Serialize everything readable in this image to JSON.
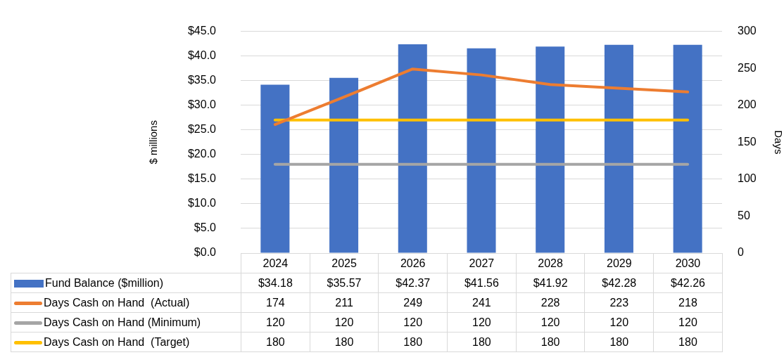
{
  "chart_data": {
    "type": "bar",
    "ylabel": "$ millions",
    "y2label": "Days",
    "categories": [
      "2024",
      "2025",
      "2026",
      "2027",
      "2028",
      "2029",
      "2030"
    ],
    "series": [
      {
        "name": "Fund Balance ($million)",
        "color": "#4472c4",
        "values": [
          34.18,
          35.57,
          42.37,
          41.56,
          41.92,
          42.28,
          42.26
        ],
        "value_labels": [
          "$34.18",
          "$35.57",
          "$42.37",
          "$41.56",
          "$41.92",
          "$42.28",
          "$42.26"
        ]
      },
      {
        "name": "Days Cash on Hand  (Actual)",
        "type": "line",
        "axis": "y2",
        "color": "#ed7d31",
        "values": [
          174,
          211,
          249,
          241,
          228,
          223,
          218
        ],
        "value_labels": [
          "174",
          "211",
          "249",
          "241",
          "228",
          "223",
          "218"
        ]
      },
      {
        "name": "Days Cash on Hand (Minimum)",
        "type": "line",
        "axis": "y2",
        "color": "#a5a5a5",
        "values": [
          120,
          120,
          120,
          120,
          120,
          120,
          120
        ],
        "value_labels": [
          "120",
          "120",
          "120",
          "120",
          "120",
          "120",
          "120"
        ]
      },
      {
        "name": "Days Cash on Hand  (Target)",
        "type": "line",
        "axis": "y2",
        "color": "#ffc000",
        "values": [
          180,
          180,
          180,
          180,
          180,
          180,
          180
        ],
        "value_labels": [
          "180",
          "180",
          "180",
          "180",
          "180",
          "180",
          "180"
        ]
      }
    ],
    "ylim": [
      0,
      45
    ],
    "yticks": [
      {
        "value": 0,
        "label": "$0.0"
      },
      {
        "value": 5,
        "label": "$5.0"
      },
      {
        "value": 10,
        "label": "$10.0"
      },
      {
        "value": 15,
        "label": "$15.0"
      },
      {
        "value": 20,
        "label": "$20.0"
      },
      {
        "value": 25,
        "label": "$25.0"
      },
      {
        "value": 30,
        "label": "$30.0"
      },
      {
        "value": 35,
        "label": "$35.0"
      },
      {
        "value": 40,
        "label": "$40.0"
      },
      {
        "value": 45,
        "label": "$45.0"
      }
    ],
    "y2lim": [
      0,
      300
    ],
    "y2ticks": [
      0,
      50,
      100,
      150,
      200,
      250,
      300
    ],
    "grid": "y",
    "legend": "bottom",
    "marker": "none"
  }
}
